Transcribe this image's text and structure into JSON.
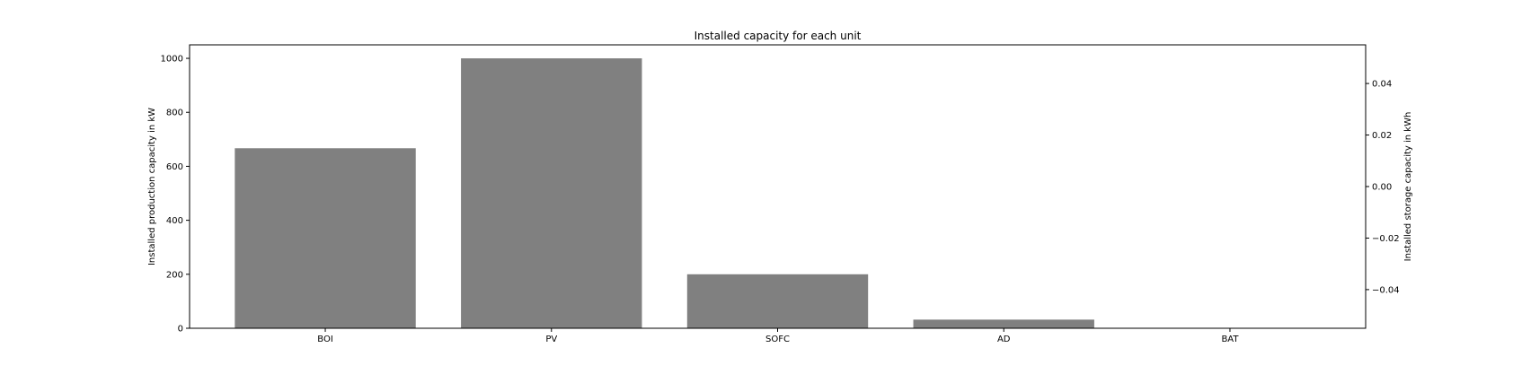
{
  "chart_data": {
    "type": "bar",
    "title": "Installed capacity for each unit",
    "categories": [
      "BOI",
      "PV",
      "SOFC",
      "AD",
      "BAT"
    ],
    "values": [
      667,
      1000,
      200,
      32,
      0
    ],
    "ylabel": "Installed production capacity in kW",
    "ylim": [
      0,
      1050
    ],
    "yticks": [
      0,
      200,
      400,
      600,
      800,
      1000
    ],
    "y2label": "Installed storage capacity in kWh",
    "y2lim": [
      -0.055,
      0.055
    ],
    "y2ticks": [
      -0.04,
      -0.02,
      0.0,
      0.02,
      0.04
    ],
    "y2tick_labels": [
      "−0.04",
      "−0.02",
      "0.00",
      "0.02",
      "0.04"
    ],
    "bar_color": "#808080",
    "grid": false,
    "legend": "none"
  }
}
